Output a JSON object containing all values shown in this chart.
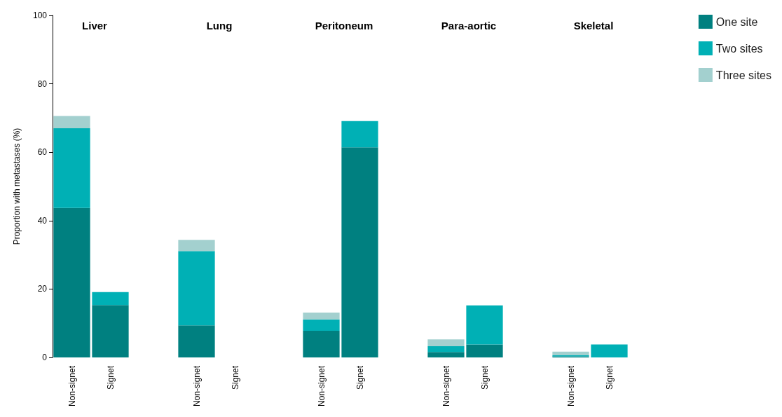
{
  "chart_data": [
    {
      "type": "bar",
      "title": "Liver",
      "ylabel": "Proportion with metastases (%)",
      "categories": [
        "Non-signet",
        "Signet"
      ],
      "stacked": true,
      "ylim": [
        0,
        100
      ],
      "yticks": [
        0,
        20,
        40,
        60,
        80,
        100
      ],
      "grid": false,
      "legend": false,
      "series": [
        {
          "color": "#008080",
          "values": [
            43.7,
            15.3
          ]
        },
        {
          "color": "#00b0b5",
          "values": [
            23.3,
            3.8
          ]
        },
        {
          "color": "#a3d0cf",
          "values": [
            3.6,
            null
          ]
        }
      ]
    },
    {
      "type": "bar",
      "title": "Lung",
      "categories": [
        "Non-signet",
        "Signet"
      ],
      "stacked": true,
      "ylim": [
        0,
        100
      ],
      "yticks": [
        0,
        20,
        40,
        60,
        80,
        100
      ],
      "tick_labels": "x",
      "grid": false,
      "legend": false,
      "series": [
        {
          "color": "#008080",
          "values": [
            9.4,
            null
          ]
        },
        {
          "color": "#00b0b5",
          "values": [
            21.7,
            null
          ]
        },
        {
          "color": "#a3d0cf",
          "values": [
            3.3,
            null
          ]
        }
      ]
    },
    {
      "type": "bar",
      "title": "Peritoneum",
      "categories": [
        "Non-signet",
        "Signet"
      ],
      "stacked": true,
      "ylim": [
        0,
        100
      ],
      "yticks": [
        0,
        20,
        40,
        60,
        80,
        100
      ],
      "tick_labels": "x",
      "grid": false,
      "legend": false,
      "series": [
        {
          "color": "#008080",
          "values": [
            7.8,
            61.4
          ]
        },
        {
          "color": "#00b0b5",
          "values": [
            3.3,
            7.7
          ]
        },
        {
          "color": "#a3d0cf",
          "values": [
            2.0,
            null
          ]
        }
      ]
    },
    {
      "type": "bar",
      "title": "Para-aortic",
      "categories": [
        "Non-signet",
        "Signet"
      ],
      "stacked": true,
      "ylim": [
        0,
        100
      ],
      "yticks": [
        0,
        20,
        40,
        60,
        80,
        100
      ],
      "tick_labels": "x",
      "grid": false,
      "legend": false,
      "series": [
        {
          "color": "#008080",
          "values": [
            1.6,
            3.8
          ]
        },
        {
          "color": "#00b0b5",
          "values": [
            1.7,
            11.4
          ]
        },
        {
          "color": "#a3d0cf",
          "values": [
            2.0,
            null
          ]
        }
      ]
    },
    {
      "type": "bar",
      "title": "Skeletal",
      "categories": [
        "Non-signet",
        "Signet"
      ],
      "stacked": true,
      "ylim": [
        0,
        100
      ],
      "yticks": [
        0,
        20,
        40,
        60,
        80,
        100
      ],
      "tick_labels": "x",
      "grid": false,
      "legend": "top right",
      "series": [
        {
          "name": "One site",
          "color": "#008080",
          "values": [
            0.3,
            null
          ]
        },
        {
          "name": "Two sites",
          "color": "#00b0b5",
          "values": [
            0.3,
            3.8
          ]
        },
        {
          "name": "Three sites",
          "color": "#a3d0cf",
          "values": [
            1.1,
            null
          ]
        }
      ]
    }
  ]
}
